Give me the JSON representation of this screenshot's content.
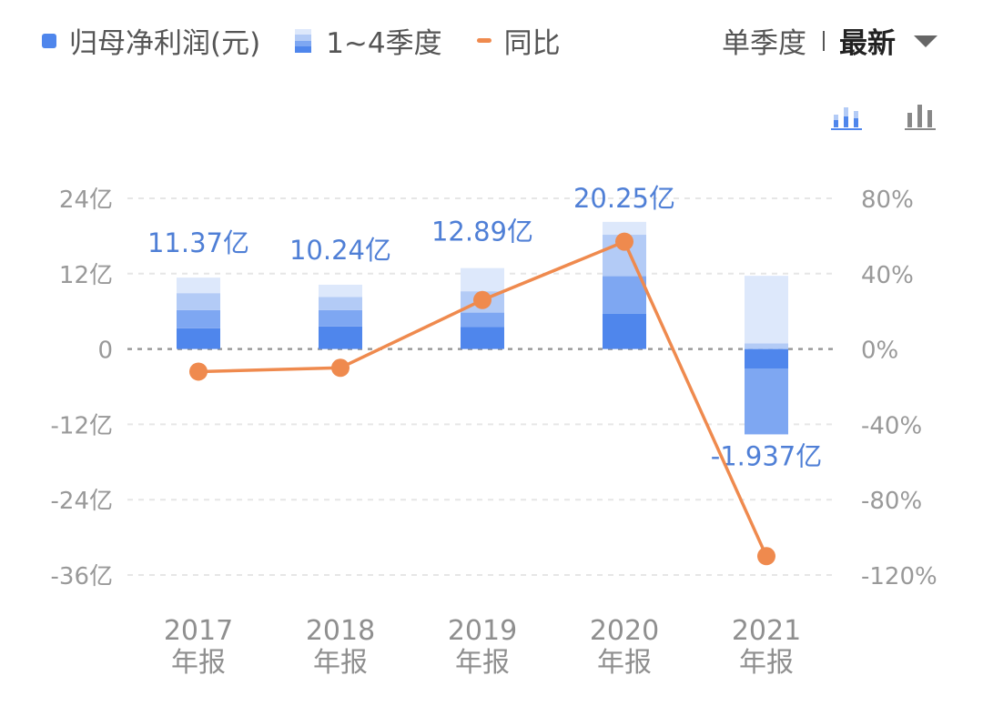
{
  "legend": {
    "net_profit_label": "归母净利润(元)",
    "quarters_label": "1~4季度",
    "yoy_label": "同比"
  },
  "period": {
    "label": "单季度",
    "selected": "最新"
  },
  "toggle_icons": [
    "stacked-bar-chart-icon",
    "bar-chart-icon"
  ],
  "colors": {
    "q1": "#4f86ec",
    "q2": "#7ea7f2",
    "q3": "#b3cbf6",
    "q4": "#dde8fb",
    "line": "#ef8a4e",
    "value_label": "#4f7fd6",
    "axis_text": "#999999"
  },
  "chart_data": {
    "type": "bar",
    "categories": [
      "2017\n年报",
      "2018\n年报",
      "2019\n年报",
      "2020\n年报",
      "2021\n年报"
    ],
    "series": [
      {
        "name": "Q1",
        "values": [
          3.3,
          3.6,
          3.5,
          5.6,
          -3.1
        ]
      },
      {
        "name": "Q2",
        "values": [
          2.9,
          2.6,
          2.3,
          6.0,
          -10.5
        ]
      },
      {
        "name": "Q3",
        "values": [
          2.7,
          2.1,
          3.4,
          6.6,
          0.9
        ]
      },
      {
        "name": "Q4",
        "values": [
          2.47,
          1.94,
          3.69,
          2.05,
          10.76
        ]
      }
    ],
    "totals": [
      11.37,
      10.24,
      12.89,
      20.25,
      -1.937
    ],
    "total_labels": [
      "11.37亿",
      "10.24亿",
      "12.89亿",
      "20.25亿",
      "-1.937亿"
    ],
    "yoy": [
      -12,
      -10,
      26,
      57,
      -110
    ],
    "y_ticks": [
      "24亿",
      "12亿",
      "0",
      "-12亿",
      "-24亿",
      "-36亿"
    ],
    "y_tick_values": [
      24,
      12,
      0,
      -12,
      -24,
      -36
    ],
    "y2_ticks": [
      "80%",
      "40%",
      "0%",
      "-40%",
      "-80%",
      "-120%"
    ],
    "y2_tick_values": [
      80,
      40,
      0,
      -40,
      -80,
      -120
    ],
    "ylim": [
      -36,
      24
    ],
    "y2lim": [
      -120,
      80
    ],
    "grid": true
  }
}
